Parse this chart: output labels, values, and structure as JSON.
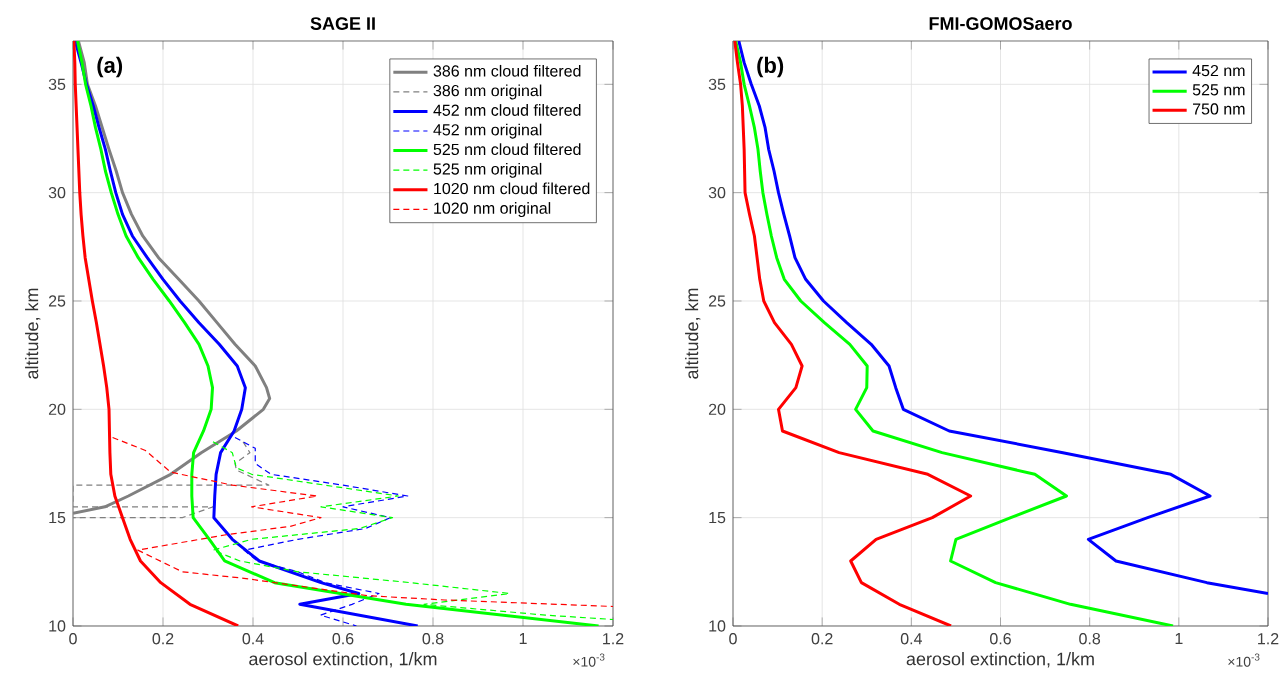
{
  "chart_data": [
    {
      "type": "line",
      "title": "SAGE II",
      "xlabel": "aerosol extinction, 1/km",
      "ylabel": "altitude, km",
      "xlim": [
        0,
        1.2
      ],
      "ylim": [
        10,
        37
      ],
      "xticks": [
        0,
        0.2,
        0.4,
        0.6,
        0.8,
        1,
        1.2
      ],
      "yticks": [
        10,
        15,
        20,
        25,
        30,
        35
      ],
      "grid": true,
      "legend": "top right",
      "annotations": [
        "(a)",
        "×10$^{-3}$"
      ],
      "series": [
        {
          "name": "386 nm cloud filtered",
          "color": "#808080",
          "line_style": "solid",
          "x": [
            0.012,
            0.025,
            0.032,
            0.05,
            0.065,
            0.08,
            0.096,
            0.11,
            0.13,
            0.155,
            0.19,
            0.235,
            0.28,
            0.32,
            0.36,
            0.405,
            0.43,
            0.437,
            0.423,
            0.363,
            0.285,
            0.217,
            0.123,
            0.071,
            0
          ],
          "values": [
            37,
            36,
            35,
            34,
            33,
            32,
            31,
            30,
            29,
            28,
            27,
            26,
            25,
            24,
            23,
            22,
            21,
            20.5,
            20,
            19,
            18,
            17,
            16,
            15.5,
            15.2
          ]
        },
        {
          "name": "386 nm original",
          "color": "#808080",
          "line_style": "dashed",
          "x": [
            0.378,
            0.393,
            0.36,
            0.363,
            0.435,
            0,
            0,
            0.311,
            0.243,
            0
          ],
          "values": [
            18.5,
            18,
            17.5,
            17.2,
            16.5,
            16.5,
            15.5,
            15.5,
            15,
            15
          ]
        },
        {
          "name": "452 nm cloud filtered",
          "color": "#0000ff",
          "line_style": "solid",
          "x": [
            0.005,
            0.018,
            0.03,
            0.045,
            0.058,
            0.072,
            0.083,
            0.095,
            0.11,
            0.132,
            0.165,
            0.2,
            0.238,
            0.28,
            0.325,
            0.365,
            0.383,
            0.375,
            0.358,
            0.328,
            0.318,
            0.315,
            0.313,
            0.354,
            0.414,
            0.551,
            0.635,
            0.504,
            0.766
          ],
          "values": [
            37,
            36,
            35,
            34,
            33,
            32,
            31,
            30,
            29,
            28,
            27,
            26,
            25,
            24,
            23,
            22,
            21,
            20,
            19,
            18,
            17,
            16,
            15,
            14,
            13,
            12,
            11.5,
            11,
            10
          ]
        },
        {
          "name": "452 nm original",
          "color": "#0000ff",
          "line_style": "dashed",
          "x": [
            0.36,
            0.405,
            0.405,
            0.44,
            0.6,
            0.744,
            0.6,
            0.705,
            0.65,
            0.5,
            0.38,
            0.41,
            0.5,
            0.56,
            0.68,
            0.62,
            0.55,
            0.63
          ],
          "values": [
            18.7,
            18.2,
            17.5,
            17,
            16.5,
            16,
            15.5,
            15,
            14.5,
            14,
            13.5,
            13,
            12.5,
            12,
            11.5,
            11,
            10.5,
            10
          ]
        },
        {
          "name": "525 nm cloud filtered",
          "color": "#00ff00",
          "line_style": "solid",
          "x": [
            0.01,
            0.02,
            0.028,
            0.04,
            0.05,
            0.062,
            0.072,
            0.085,
            0.1,
            0.118,
            0.145,
            0.178,
            0.214,
            0.248,
            0.28,
            0.3,
            0.31,
            0.307,
            0.29,
            0.268,
            0.264,
            0.264,
            0.267,
            0.303,
            0.337,
            0.448,
            0.74,
            1.168
          ],
          "values": [
            37,
            36,
            35,
            34,
            33,
            32,
            31,
            30,
            29,
            28,
            27,
            26,
            25,
            24,
            23,
            22,
            21,
            20,
            19,
            18,
            17,
            16,
            15,
            14,
            13,
            12,
            11,
            10
          ]
        },
        {
          "name": "525 nm original",
          "color": "#00ff00",
          "line_style": "dashed",
          "x": [
            0.311,
            0.354,
            0.363,
            0.397,
            0.723,
            0.551,
            0.71,
            0.637,
            0.397,
            0.311,
            0.371,
            0.5,
            0.75,
            0.97,
            0.78,
            1.05,
            1.2
          ],
          "values": [
            18.5,
            18,
            17.3,
            17,
            16,
            15.5,
            15,
            14.5,
            14,
            13.5,
            13,
            12.5,
            12,
            11.5,
            11,
            10.5,
            10.3
          ]
        },
        {
          "name": "1020 nm cloud filtered",
          "color": "#ff0000",
          "line_style": "solid",
          "x": [
            0.002,
            0.004,
            0.005,
            0.007,
            0.009,
            0.011,
            0.013,
            0.015,
            0.018,
            0.022,
            0.027,
            0.035,
            0.043,
            0.052,
            0.06,
            0.068,
            0.075,
            0.08,
            0.081,
            0.082,
            0.084,
            0.093,
            0.11,
            0.127,
            0.15,
            0.195,
            0.26,
            0.367
          ],
          "values": [
            37,
            36,
            35,
            34,
            33,
            32,
            31,
            30,
            29,
            28,
            27,
            26,
            25,
            24,
            23,
            22,
            21,
            20,
            19,
            18,
            17,
            16,
            15,
            14,
            13,
            12,
            11,
            10
          ]
        },
        {
          "name": "1020 nm original",
          "color": "#ff0000",
          "line_style": "dashed",
          "x": [
            0.088,
            0.161,
            0.217,
            0.354,
            0.543,
            0.397,
            0.551,
            0.483,
            0.337,
            0.144,
            0.243,
            0.38,
            0.654,
            0.826,
            1.2
          ],
          "values": [
            18.7,
            18.1,
            17.1,
            16.5,
            16,
            15.5,
            15,
            14.6,
            14.2,
            13.5,
            12.5,
            12.2,
            11.4,
            11.2,
            10.9
          ]
        }
      ]
    },
    {
      "type": "line",
      "title": "FMI-GOMOSaero",
      "xlabel": "aerosol extinction, 1/km",
      "ylabel": "altitude, km",
      "xlim": [
        0,
        1.2
      ],
      "ylim": [
        10,
        37
      ],
      "xticks": [
        0,
        0.2,
        0.4,
        0.6,
        0.8,
        1,
        1.2
      ],
      "yticks": [
        10,
        15,
        20,
        25,
        30,
        35
      ],
      "grid": true,
      "legend": "top right",
      "annotations": [
        "(b)",
        "×10$^{-3}$"
      ],
      "series": [
        {
          "name": "452 nm",
          "color": "#0000ff",
          "line_style": "solid",
          "x": [
            0.013,
            0.025,
            0.041,
            0.059,
            0.072,
            0.08,
            0.092,
            0.102,
            0.114,
            0.127,
            0.139,
            0.163,
            0.203,
            0.255,
            0.31,
            0.35,
            0.365,
            0.382,
            0.485,
            0.74,
            0.982,
            1.07,
            0.93,
            0.797,
            0.859,
            1.063,
            1.2
          ],
          "values": [
            37,
            36,
            35,
            34,
            33,
            32,
            31,
            30,
            29,
            28,
            27,
            26,
            25,
            24,
            23,
            22,
            21,
            20,
            19,
            18,
            17,
            16,
            15,
            14,
            13,
            12,
            11.5
          ]
        },
        {
          "name": "525 nm",
          "color": "#00ff00",
          "line_style": "solid",
          "x": [
            0.006,
            0.017,
            0.025,
            0.037,
            0.048,
            0.056,
            0.061,
            0.067,
            0.076,
            0.086,
            0.098,
            0.115,
            0.152,
            0.205,
            0.262,
            0.301,
            0.3,
            0.275,
            0.314,
            0.469,
            0.677,
            0.748,
            0.623,
            0.5,
            0.488,
            0.589,
            0.757,
            0.987
          ],
          "values": [
            37,
            36,
            35,
            34,
            33,
            32,
            31,
            30,
            29,
            28,
            27,
            26,
            25,
            24,
            23,
            22,
            21,
            20,
            19,
            18,
            17,
            16,
            15,
            14,
            13,
            12,
            11,
            10
          ]
        },
        {
          "name": "750 nm",
          "color": "#ff0000",
          "line_style": "solid",
          "x": [
            0.004,
            0.01,
            0.017,
            0.021,
            0.023,
            0.025,
            0.026,
            0.027,
            0.037,
            0.048,
            0.054,
            0.06,
            0.069,
            0.093,
            0.131,
            0.155,
            0.141,
            0.102,
            0.111,
            0.238,
            0.437,
            0.533,
            0.447,
            0.321,
            0.264,
            0.288,
            0.373,
            0.489
          ],
          "values": [
            37,
            36,
            35,
            34,
            33,
            32,
            31,
            30,
            29,
            28,
            27,
            26,
            25,
            24,
            23,
            22,
            21,
            20,
            19,
            18,
            17,
            16,
            15,
            14,
            13,
            12,
            11,
            10
          ]
        }
      ]
    }
  ]
}
